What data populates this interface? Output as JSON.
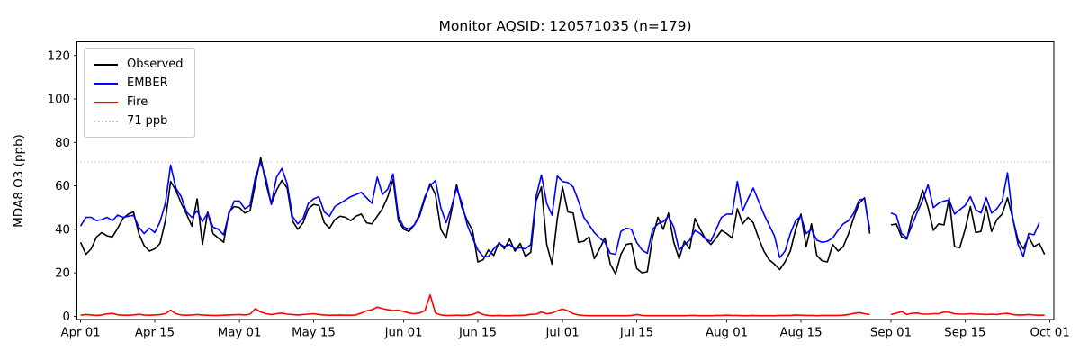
{
  "chart_data": {
    "type": "line",
    "title": "Monitor AQSID: 120571035 (n=179)",
    "ylabel": "MDA8 O3 (ppb)",
    "xlabel": "",
    "ylim": [
      -1.5,
      126.3
    ],
    "yticks": [
      0,
      20,
      40,
      60,
      80,
      100,
      120
    ],
    "xtick_days": [
      0,
      14,
      30,
      44,
      61,
      75,
      91,
      105,
      122,
      136,
      153,
      167,
      183
    ],
    "xtick_labels": [
      "Apr 01",
      "Apr 15",
      "May 01",
      "May 15",
      "Jun 01",
      "Jun 15",
      "Jul 01",
      "Jul 15",
      "Aug 01",
      "Aug 15",
      "Sep 01",
      "Sep 15",
      "Oct 01"
    ],
    "x_start_label": "Apr 01",
    "x_end_label": "Oct 01",
    "days_total": 184,
    "grid": "off",
    "threshold": {
      "value": 71,
      "label": "71 ppb",
      "color": "#c8c8c8",
      "style": "dotted"
    },
    "legend": {
      "position": "upper left",
      "entries": [
        {
          "label": "Observed",
          "color": "#000000",
          "style": "solid"
        },
        {
          "label": "EMBER",
          "color": "#0000ff",
          "style": "solid"
        },
        {
          "label": "Fire",
          "color": "#ff0000",
          "style": "solid"
        },
        {
          "label": "71 ppb",
          "color": "#c8c8c8",
          "style": "dotted"
        }
      ]
    },
    "series": [
      {
        "name": "Observed",
        "color": "#000000",
        "values": [
          34,
          28.5,
          31,
          36.5,
          38.5,
          37,
          36.5,
          40.5,
          45,
          47,
          48,
          38,
          32.5,
          30,
          31,
          33.5,
          44,
          62,
          58,
          52,
          47,
          41.5,
          54,
          33,
          48,
          38,
          36,
          34,
          48,
          50.5,
          50,
          47.5,
          48.5,
          61,
          73,
          61,
          51.5,
          58,
          62.5,
          59,
          44,
          40,
          43,
          49.5,
          51.5,
          51,
          43,
          40.5,
          44.5,
          46,
          45.5,
          44,
          46,
          47,
          43,
          42.5,
          46,
          49.5,
          55,
          63,
          44,
          40,
          39,
          42,
          46,
          54,
          61,
          56,
          40,
          36,
          48,
          60.5,
          50,
          44,
          39.5,
          25,
          26,
          30.5,
          28,
          34,
          31,
          35.5,
          30,
          33.5,
          27.5,
          29.5,
          53,
          59.5,
          33,
          24,
          45,
          59.5,
          48,
          47.5,
          34,
          34.5,
          36.5,
          26.5,
          31,
          36,
          24,
          19.5,
          28.5,
          33,
          33.5,
          22,
          20,
          20.5,
          36.5,
          45.5,
          40,
          47.5,
          34,
          26.5,
          34.5,
          31,
          45,
          40,
          35.5,
          33,
          36,
          39.5,
          38,
          36,
          49.5,
          42.5,
          45.5,
          43,
          36,
          30,
          26,
          24,
          21.5,
          25,
          30,
          40,
          47,
          32,
          42.5,
          28,
          25.5,
          25,
          33,
          30,
          32,
          38,
          45.5,
          52,
          54.5,
          38,
          null,
          null,
          null,
          42,
          42.5,
          36.5,
          35.5,
          46,
          50,
          58,
          50,
          39.5,
          42.5,
          42,
          54.5,
          32,
          31.5,
          40,
          50.5,
          38.5,
          39,
          50.5,
          39,
          44.5,
          47,
          54.5,
          45,
          35,
          31,
          36.5,
          32,
          33.5,
          28.5,
          null
        ]
      },
      {
        "name": "EMBER",
        "color": "#0000ff",
        "values": [
          41.5,
          45.5,
          45.5,
          44,
          44.5,
          45.5,
          44,
          46.5,
          45.5,
          46,
          46.5,
          41,
          38,
          40.5,
          38.5,
          43.5,
          52,
          69.5,
          59,
          55,
          48,
          45.5,
          48.5,
          43.5,
          47.5,
          41,
          40,
          37.5,
          47,
          53,
          53,
          49.5,
          51,
          64,
          71,
          63.5,
          51.5,
          64,
          68,
          61,
          46,
          42.5,
          45,
          52,
          54,
          55,
          48,
          46,
          50.5,
          52,
          53.5,
          55,
          56,
          57,
          54.5,
          52,
          64,
          56,
          58.5,
          65.5,
          46,
          41,
          40,
          42,
          47,
          55,
          60,
          62.5,
          50,
          43,
          50,
          59,
          52,
          42,
          36,
          30.5,
          27.5,
          27.5,
          31,
          33.5,
          32,
          33,
          31,
          31.5,
          31,
          33,
          55,
          65,
          52,
          46.5,
          64.5,
          62,
          61.5,
          59.5,
          53,
          45.5,
          42,
          38.5,
          36,
          34,
          29,
          28.5,
          39,
          40.5,
          40,
          34,
          30.5,
          29,
          40,
          42.5,
          43.5,
          46,
          41,
          30.5,
          33,
          35,
          39.5,
          38,
          35.5,
          34.5,
          40,
          45.5,
          47,
          47,
          62,
          48.5,
          54,
          59,
          53,
          47,
          42,
          37,
          27,
          30,
          38,
          44,
          46,
          38,
          40,
          35,
          34,
          34.5,
          36,
          39.5,
          42.5,
          44,
          47.5,
          53.5,
          54,
          40,
          null,
          null,
          null,
          47.5,
          46.5,
          38,
          36,
          42,
          48,
          53.5,
          60.5,
          50,
          52,
          53,
          53.5,
          47,
          49,
          51,
          55,
          49,
          47.5,
          54.5,
          47.5,
          49.5,
          53,
          66,
          45,
          33,
          27.5,
          38,
          37.5,
          43,
          null,
          null
        ]
      },
      {
        "name": "Fire",
        "color": "#ff0000",
        "values": [
          0.5,
          0.8,
          0.6,
          0.4,
          0.6,
          1.1,
          1.3,
          0.7,
          0.5,
          0.5,
          0.6,
          0.9,
          0.6,
          0.5,
          0.6,
          0.8,
          1.2,
          2.8,
          1.2,
          0.6,
          0.5,
          0.6,
          0.8,
          0.6,
          0.5,
          0.4,
          0.4,
          0.5,
          0.6,
          0.7,
          0.8,
          0.6,
          1,
          3.5,
          2,
          1.2,
          0.8,
          1.2,
          1.5,
          1,
          0.8,
          0.6,
          0.8,
          1,
          1.2,
          0.8,
          0.6,
          0.5,
          0.5,
          0.6,
          0.5,
          0.5,
          0.6,
          1.5,
          2.5,
          3,
          4.2,
          3.5,
          3,
          2.6,
          2.8,
          2.2,
          1.5,
          1.2,
          1.5,
          2.6,
          9.8,
          1.5,
          0.6,
          0.4,
          0.4,
          0.5,
          0.4,
          0.5,
          0.8,
          1.8,
          0.8,
          0.4,
          0.3,
          0.4,
          0.3,
          0.3,
          0.4,
          0.4,
          0.5,
          0.9,
          1,
          1.9,
          1.2,
          1.5,
          2.5,
          3.3,
          2.5,
          1.2,
          0.6,
          0.4,
          0.3,
          0.3,
          0.3,
          0.3,
          0.3,
          0.3,
          0.3,
          0.3,
          0.4,
          0.8,
          0.4,
          0.3,
          0.3,
          0.3,
          0.3,
          0.3,
          0.3,
          0.3,
          0.3,
          0.4,
          0.4,
          0.3,
          0.3,
          0.3,
          0.4,
          0.4,
          0.5,
          0.4,
          0.4,
          0.3,
          0.3,
          0.4,
          0.3,
          0.3,
          0.3,
          0.3,
          0.4,
          0.4,
          0.4,
          0.6,
          0.5,
          0.4,
          0.4,
          0.3,
          0.4,
          0.4,
          0.4,
          0.4,
          0.5,
          0.8,
          1.3,
          1.7,
          1.2,
          0.8,
          null,
          null,
          null,
          0.8,
          1.4,
          2.2,
          0.8,
          1.4,
          1.5,
          1,
          1,
          1.2,
          1.2,
          2,
          1.8,
          1.2,
          1,
          1,
          1.2,
          1,
          1,
          0.8,
          1,
          0.8,
          1.2,
          1.3,
          0.8,
          0.6,
          0.6,
          0.8,
          0.6,
          0.5,
          0.5,
          null
        ]
      }
    ],
    "missing_days": [
      "Aug 29",
      "Aug 30",
      "Aug 31"
    ]
  }
}
